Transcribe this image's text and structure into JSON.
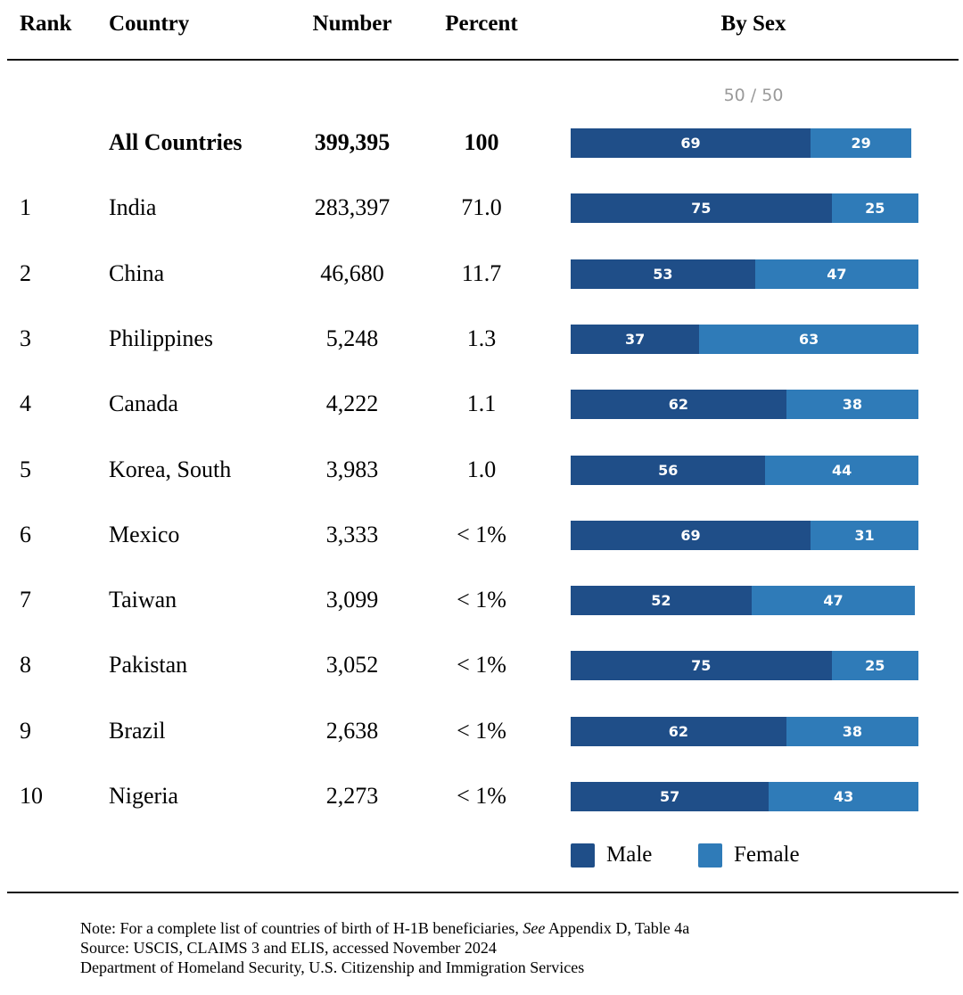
{
  "headers": {
    "rank": "Rank",
    "country": "Country",
    "number": "Number",
    "percent": "Percent",
    "by_sex": "By Sex"
  },
  "split_label": "50 / 50",
  "colors": {
    "male": "#1f4e88",
    "female": "#2f7bb8",
    "muted": "#9a9a9a"
  },
  "legend": {
    "male": "Male",
    "female": "Female"
  },
  "notes": {
    "note_prefix": "Note: For a complete list of countries of birth of H-1B beneficiaries,",
    "note_see": "See",
    "note_suffix": "Appendix D, Table 4a",
    "source": "Source: USCIS, CLAIMS 3 and ELIS, accessed November 2024",
    "agency": "Department of Homeland Security, U.S. Citizenship and Immigration Services"
  },
  "chart_data": {
    "type": "table",
    "series": [
      {
        "name": "Male"
      },
      {
        "name": "Female"
      }
    ],
    "rows": [
      {
        "rank": "",
        "country": "All Countries",
        "number": "399,395",
        "percent": "100",
        "male": 69,
        "female": 29,
        "total": true
      },
      {
        "rank": "1",
        "country": "India",
        "number": "283,397",
        "percent": "71.0",
        "male": 75,
        "female": 25
      },
      {
        "rank": "2",
        "country": "China",
        "number": "46,680",
        "percent": "11.7",
        "male": 53,
        "female": 47
      },
      {
        "rank": "3",
        "country": "Philippines",
        "number": "5,248",
        "percent": "1.3",
        "male": 37,
        "female": 63
      },
      {
        "rank": "4",
        "country": "Canada",
        "number": "4,222",
        "percent": "1.1",
        "male": 62,
        "female": 38
      },
      {
        "rank": "5",
        "country": "Korea, South",
        "number": "3,983",
        "percent": "1.0",
        "male": 56,
        "female": 44
      },
      {
        "rank": "6",
        "country": "Mexico",
        "number": "3,333",
        "percent": "< 1%",
        "male": 69,
        "female": 31
      },
      {
        "rank": "7",
        "country": "Taiwan",
        "number": "3,099",
        "percent": "< 1%",
        "male": 52,
        "female": 47
      },
      {
        "rank": "8",
        "country": "Pakistan",
        "number": "3,052",
        "percent": "< 1%",
        "male": 75,
        "female": 25
      },
      {
        "rank": "9",
        "country": "Brazil",
        "number": "2,638",
        "percent": "< 1%",
        "male": 62,
        "female": 38
      },
      {
        "rank": "10",
        "country": "Nigeria",
        "number": "2,273",
        "percent": "< 1%",
        "male": 57,
        "female": 43
      }
    ]
  }
}
